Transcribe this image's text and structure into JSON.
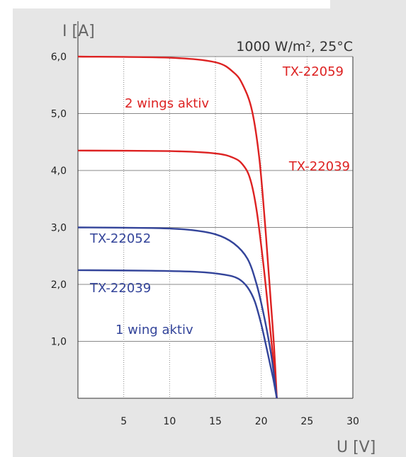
{
  "chart_data": {
    "type": "line",
    "title": "",
    "xlabel": "U [V]",
    "ylabel": "I [A]",
    "condition": "1000 W/m², 25°C",
    "xlim": [
      0,
      30
    ],
    "ylim": [
      0,
      6
    ],
    "x_ticks": [
      "5",
      "10",
      "15",
      "20",
      "25",
      "30"
    ],
    "y_ticks": [
      "1,0",
      "2,0",
      "3,0",
      "4,0",
      "5,0",
      "6,0"
    ],
    "grid": true,
    "colors": {
      "red": "#dd2222",
      "blue": "#33449a"
    },
    "annotations": [
      {
        "text": "2 wings aktiv",
        "color": "#dd2222"
      },
      {
        "text": "1 wing aktiv",
        "color": "#33449a"
      }
    ],
    "series": [
      {
        "name": "TX-22059",
        "color": "#dd2222",
        "isc": 6.0,
        "voc": 21.7,
        "x": [
          0,
          10,
          15,
          17,
          18,
          19,
          19.8,
          20.5,
          21.0,
          21.4,
          21.7
        ],
        "y": [
          6.0,
          5.98,
          5.9,
          5.72,
          5.5,
          5.05,
          4.2,
          2.9,
          1.8,
          0.9,
          0.0
        ]
      },
      {
        "name": "TX-22039",
        "color": "#dd2222",
        "isc": 4.35,
        "voc": 21.7,
        "x": [
          0,
          10,
          15,
          17,
          18,
          18.8,
          19.5,
          20.2,
          20.8,
          21.3,
          21.7
        ],
        "y": [
          4.35,
          4.34,
          4.3,
          4.22,
          4.1,
          3.85,
          3.3,
          2.4,
          1.5,
          0.7,
          0.0
        ]
      },
      {
        "name": "TX-22052",
        "color": "#33449a",
        "isc": 3.0,
        "voc": 21.7,
        "x": [
          0,
          8,
          12,
          15,
          17,
          18.5,
          19.5,
          20.3,
          21.0,
          21.4,
          21.7
        ],
        "y": [
          3.0,
          2.99,
          2.96,
          2.88,
          2.72,
          2.45,
          2.0,
          1.45,
          0.85,
          0.4,
          0.0
        ]
      },
      {
        "name": "TX-22039",
        "color": "#33449a",
        "isc": 2.25,
        "voc": 21.7,
        "x": [
          0,
          8,
          13,
          16,
          17.5,
          18.5,
          19.3,
          20.0,
          20.7,
          21.3,
          21.7
        ],
        "y": [
          2.25,
          2.24,
          2.22,
          2.17,
          2.1,
          1.95,
          1.7,
          1.3,
          0.8,
          0.35,
          0.0
        ]
      }
    ]
  }
}
